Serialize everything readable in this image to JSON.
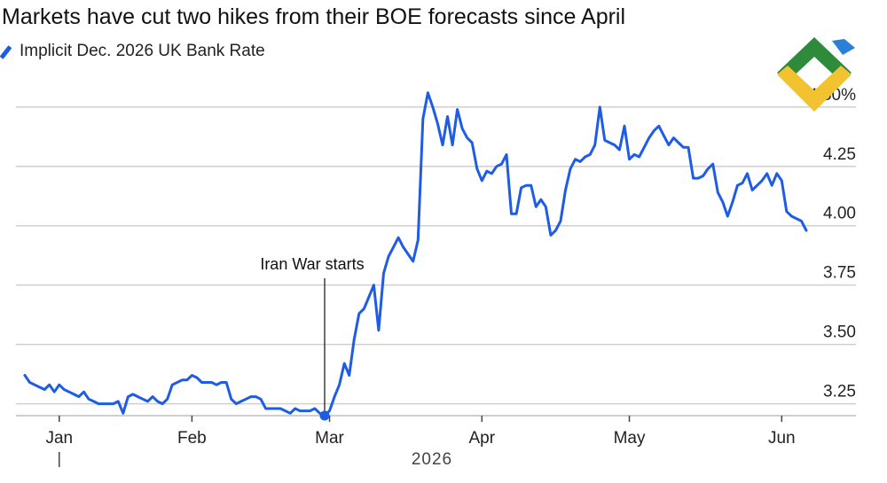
{
  "chart_data": {
    "type": "line",
    "title": "Markets have cut two hikes from their BOE forecasts since April",
    "year_label": "2026",
    "legend_position": "top-left",
    "grid": true,
    "ylim": [
      3.2,
      4.6
    ],
    "y_ticks": [
      {
        "value": 3.25,
        "label": "3.25"
      },
      {
        "value": 3.5,
        "label": "3.50"
      },
      {
        "value": 3.75,
        "label": "3.75"
      },
      {
        "value": 4.0,
        "label": "4.00"
      },
      {
        "value": 4.25,
        "label": "4.25"
      },
      {
        "value": 4.5,
        "label": "4.50%"
      }
    ],
    "x_ticks": [
      {
        "label": "Jan",
        "date": "2026-01-05"
      },
      {
        "label": "Feb",
        "date": "2026-02-01"
      },
      {
        "label": "Mar",
        "date": "2026-03-01"
      },
      {
        "label": "Apr",
        "date": "2026-04-01"
      },
      {
        "label": "May",
        "date": "2026-05-01"
      },
      {
        "label": "Jun",
        "date": "2026-06-01"
      }
    ],
    "annotation": {
      "label": "Iran War starts",
      "date": "2026-02-28",
      "value": 3.2
    },
    "series": [
      {
        "name": "Implicit Dec. 2026 UK Bank Rate",
        "color": "#1f5ce6",
        "points": [
          [
            "2025-12-29",
            3.37
          ],
          [
            "2025-12-30",
            3.34
          ],
          [
            "2025-12-31",
            3.33
          ],
          [
            "2026-01-01",
            3.32
          ],
          [
            "2026-01-02",
            3.31
          ],
          [
            "2026-01-03",
            3.33
          ],
          [
            "2026-01-04",
            3.3
          ],
          [
            "2026-01-05",
            3.33
          ],
          [
            "2026-01-06",
            3.31
          ],
          [
            "2026-01-07",
            3.3
          ],
          [
            "2026-01-08",
            3.29
          ],
          [
            "2026-01-09",
            3.28
          ],
          [
            "2026-01-10",
            3.3
          ],
          [
            "2026-01-11",
            3.27
          ],
          [
            "2026-01-12",
            3.26
          ],
          [
            "2026-01-13",
            3.25
          ],
          [
            "2026-01-14",
            3.25
          ],
          [
            "2026-01-15",
            3.25
          ],
          [
            "2026-01-16",
            3.25
          ],
          [
            "2026-01-17",
            3.26
          ],
          [
            "2026-01-18",
            3.21
          ],
          [
            "2026-01-19",
            3.28
          ],
          [
            "2026-01-20",
            3.29
          ],
          [
            "2026-01-21",
            3.28
          ],
          [
            "2026-01-22",
            3.27
          ],
          [
            "2026-01-23",
            3.26
          ],
          [
            "2026-01-24",
            3.28
          ],
          [
            "2026-01-25",
            3.26
          ],
          [
            "2026-01-26",
            3.25
          ],
          [
            "2026-01-27",
            3.27
          ],
          [
            "2026-01-28",
            3.33
          ],
          [
            "2026-01-29",
            3.34
          ],
          [
            "2026-01-30",
            3.35
          ],
          [
            "2026-01-31",
            3.35
          ],
          [
            "2026-02-01",
            3.37
          ],
          [
            "2026-02-02",
            3.36
          ],
          [
            "2026-02-03",
            3.34
          ],
          [
            "2026-02-04",
            3.34
          ],
          [
            "2026-02-05",
            3.34
          ],
          [
            "2026-02-06",
            3.33
          ],
          [
            "2026-02-07",
            3.34
          ],
          [
            "2026-02-08",
            3.34
          ],
          [
            "2026-02-09",
            3.27
          ],
          [
            "2026-02-10",
            3.25
          ],
          [
            "2026-02-11",
            3.26
          ],
          [
            "2026-02-12",
            3.27
          ],
          [
            "2026-02-13",
            3.28
          ],
          [
            "2026-02-14",
            3.28
          ],
          [
            "2026-02-15",
            3.27
          ],
          [
            "2026-02-16",
            3.23
          ],
          [
            "2026-02-17",
            3.23
          ],
          [
            "2026-02-18",
            3.23
          ],
          [
            "2026-02-19",
            3.23
          ],
          [
            "2026-02-20",
            3.22
          ],
          [
            "2026-02-21",
            3.21
          ],
          [
            "2026-02-22",
            3.23
          ],
          [
            "2026-02-23",
            3.22
          ],
          [
            "2026-02-24",
            3.22
          ],
          [
            "2026-02-25",
            3.22
          ],
          [
            "2026-02-26",
            3.23
          ],
          [
            "2026-02-27",
            3.21
          ],
          [
            "2026-02-28",
            3.2
          ],
          [
            "2026-03-01",
            3.22
          ],
          [
            "2026-03-02",
            3.28
          ],
          [
            "2026-03-03",
            3.33
          ],
          [
            "2026-03-04",
            3.42
          ],
          [
            "2026-03-05",
            3.37
          ],
          [
            "2026-03-06",
            3.52
          ],
          [
            "2026-03-07",
            3.63
          ],
          [
            "2026-03-08",
            3.65
          ],
          [
            "2026-03-09",
            3.7
          ],
          [
            "2026-03-10",
            3.75
          ],
          [
            "2026-03-11",
            3.56
          ],
          [
            "2026-03-12",
            3.8
          ],
          [
            "2026-03-13",
            3.87
          ],
          [
            "2026-03-14",
            3.91
          ],
          [
            "2026-03-15",
            3.95
          ],
          [
            "2026-03-16",
            3.91
          ],
          [
            "2026-03-17",
            3.88
          ],
          [
            "2026-03-18",
            3.85
          ],
          [
            "2026-03-19",
            3.94
          ],
          [
            "2026-03-20",
            4.45
          ],
          [
            "2026-03-21",
            4.56
          ],
          [
            "2026-03-22",
            4.5
          ],
          [
            "2026-03-23",
            4.43
          ],
          [
            "2026-03-24",
            4.34
          ],
          [
            "2026-03-25",
            4.46
          ],
          [
            "2026-03-26",
            4.34
          ],
          [
            "2026-03-27",
            4.49
          ],
          [
            "2026-03-28",
            4.41
          ],
          [
            "2026-03-29",
            4.37
          ],
          [
            "2026-03-30",
            4.35
          ],
          [
            "2026-03-31",
            4.24
          ],
          [
            "2026-04-01",
            4.19
          ],
          [
            "2026-04-02",
            4.23
          ],
          [
            "2026-04-03",
            4.22
          ],
          [
            "2026-04-04",
            4.25
          ],
          [
            "2026-04-05",
            4.26
          ],
          [
            "2026-04-06",
            4.3
          ],
          [
            "2026-04-07",
            4.05
          ],
          [
            "2026-04-08",
            4.05
          ],
          [
            "2026-04-09",
            4.16
          ],
          [
            "2026-04-10",
            4.17
          ],
          [
            "2026-04-11",
            4.17
          ],
          [
            "2026-04-12",
            4.08
          ],
          [
            "2026-04-13",
            4.11
          ],
          [
            "2026-04-14",
            4.08
          ],
          [
            "2026-04-15",
            3.96
          ],
          [
            "2026-04-16",
            3.98
          ],
          [
            "2026-04-17",
            4.02
          ],
          [
            "2026-04-18",
            4.15
          ],
          [
            "2026-04-19",
            4.24
          ],
          [
            "2026-04-20",
            4.28
          ],
          [
            "2026-04-21",
            4.27
          ],
          [
            "2026-04-22",
            4.29
          ],
          [
            "2026-04-23",
            4.3
          ],
          [
            "2026-04-24",
            4.34
          ],
          [
            "2026-04-25",
            4.5
          ],
          [
            "2026-04-26",
            4.36
          ],
          [
            "2026-04-27",
            4.35
          ],
          [
            "2026-04-28",
            4.34
          ],
          [
            "2026-04-29",
            4.32
          ],
          [
            "2026-04-30",
            4.42
          ],
          [
            "2026-05-01",
            4.28
          ],
          [
            "2026-05-02",
            4.3
          ],
          [
            "2026-05-03",
            4.29
          ],
          [
            "2026-05-04",
            4.33
          ],
          [
            "2026-05-05",
            4.37
          ],
          [
            "2026-05-06",
            4.4
          ],
          [
            "2026-05-07",
            4.42
          ],
          [
            "2026-05-08",
            4.38
          ],
          [
            "2026-05-09",
            4.34
          ],
          [
            "2026-05-10",
            4.37
          ],
          [
            "2026-05-11",
            4.35
          ],
          [
            "2026-05-12",
            4.33
          ],
          [
            "2026-05-13",
            4.33
          ],
          [
            "2026-05-14",
            4.2
          ],
          [
            "2026-05-15",
            4.2
          ],
          [
            "2026-05-16",
            4.21
          ],
          [
            "2026-05-17",
            4.24
          ],
          [
            "2026-05-18",
            4.26
          ],
          [
            "2026-05-19",
            4.14
          ],
          [
            "2026-05-20",
            4.1
          ],
          [
            "2026-05-21",
            4.04
          ],
          [
            "2026-05-22",
            4.1
          ],
          [
            "2026-05-23",
            4.17
          ],
          [
            "2026-05-24",
            4.18
          ],
          [
            "2026-05-25",
            4.22
          ],
          [
            "2026-05-26",
            4.15
          ],
          [
            "2026-05-27",
            4.17
          ],
          [
            "2026-05-28",
            4.19
          ],
          [
            "2026-05-29",
            4.22
          ],
          [
            "2026-05-30",
            4.17
          ],
          [
            "2026-05-31",
            4.22
          ],
          [
            "2026-06-01",
            4.19
          ],
          [
            "2026-06-02",
            4.06
          ],
          [
            "2026-06-03",
            4.04
          ],
          [
            "2026-06-04",
            4.03
          ],
          [
            "2026-06-05",
            4.02
          ],
          [
            "2026-06-06",
            3.98
          ]
        ]
      }
    ]
  }
}
